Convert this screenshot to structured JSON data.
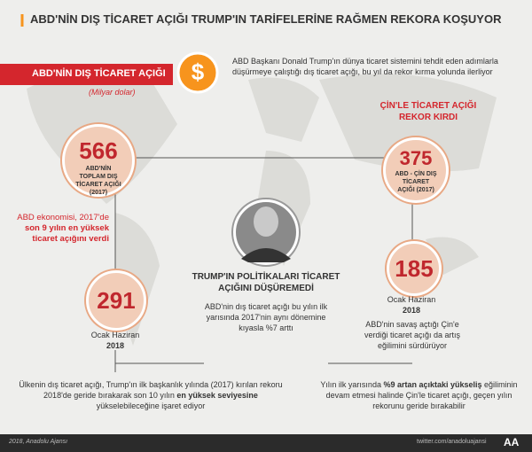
{
  "header": {
    "title": "ABD'NİN DIŞ TİCARET AÇIĞI TRUMP'IN TARİFELERİNE RAĞMEN REKORA KOŞUYOR"
  },
  "banner": {
    "title": "ABD'NİN DIŞ TİCARET AÇIĞI",
    "unit": "(Milyar dolar)",
    "icon": "$"
  },
  "intro": "ABD Başkanı Donald Trump'ın dünya ticaret sistemini tehdit eden adımlarla düşürmeye çalıştığı dış ticaret açığı, bu yıl da rekor kırma yolunda ilerliyor",
  "china_heading": "ÇİN'LE TİCARET AÇIĞI REKOR KIRDI",
  "circles": [
    {
      "value": 566,
      "label": "ABD'NİN TOPLAM DIŞ TİCARET AÇIĞI (2017)"
    },
    {
      "value": 375,
      "label": "ABD - ÇİN DIŞ TİCARET AÇIĞI (2017)"
    },
    {
      "value": 291,
      "period": "Ocak Haziran",
      "year": "2018"
    },
    {
      "value": 185,
      "period": "Ocak Haziran",
      "year": "2018"
    }
  ],
  "left_note": [
    "ABD ekonomisi, 2017'de ",
    "son 9 yılın en yüksek ticaret açığını verdi"
  ],
  "center": {
    "heading": "TRUMP'IN POLİTİKALARI TİCARET AÇIĞINI DÜŞÜREMEDİ",
    "text": "ABD'nin dış ticaret açığı bu yılın ilk yarısında 2017'nin aynı dönemine kıyasla %7 arttı"
  },
  "right_note": "ABD'nin savaş açtığı Çin'e verdiği ticaret açığı da artış eğilimini sürdürüyor",
  "bottom_left": [
    "Ülkenin dış ticaret açığı, Trump'ın ilk başkanlık yılında (2017) kırılan rekoru 2018'de geride bırakarak son 10 yılın ",
    "en yüksek seviyesine",
    " yükselebileceğine işaret ediyor"
  ],
  "bottom_right": [
    "Yılın ilk yarısında ",
    "%9 artan açıktaki yükseliş",
    " eğiliminin devam etmesi halinde Çin'le ticaret açığı, geçen yılın rekorunu geride bırakabilir"
  ],
  "footer": {
    "left": "2018, Anadolu Ajansı",
    "right": "twitter.com/anadoluajansi",
    "logo": "AA"
  }
}
